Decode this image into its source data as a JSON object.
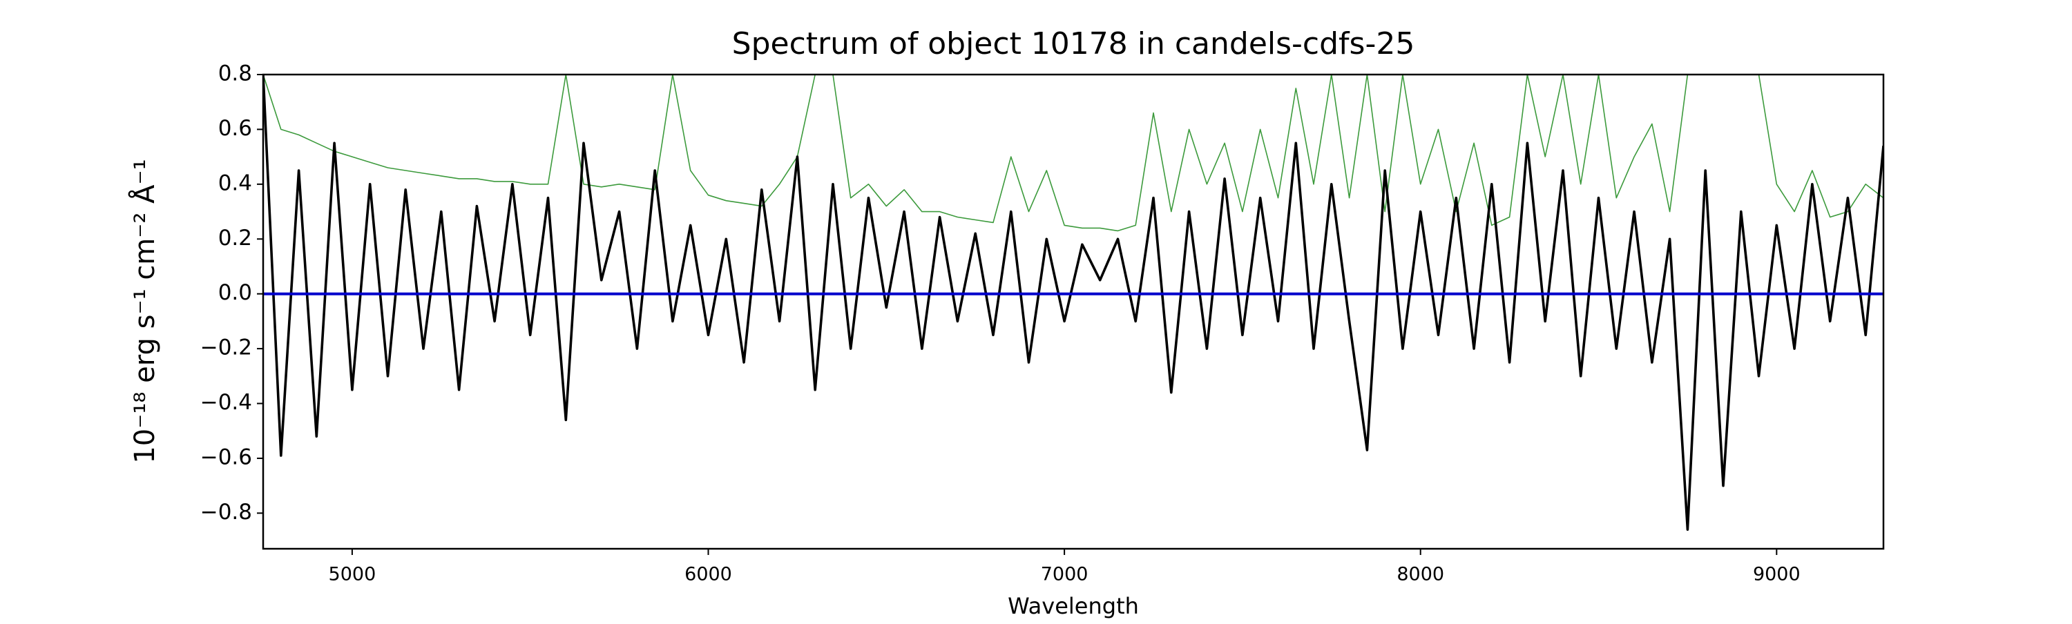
{
  "chart_data": {
    "type": "line",
    "title": "Spectrum of object 10178 in candels-cdfs-25",
    "x_label": "Wavelength",
    "y_label": "10⁻¹⁸ erg s⁻¹ cm⁻² Å⁻¹",
    "xlim": [
      4750,
      9300
    ],
    "ylim": [
      -0.93,
      0.8
    ],
    "xticks": [
      5000,
      6000,
      7000,
      8000,
      9000
    ],
    "yticks": [
      {
        "value": -0.8,
        "label": "−0.8"
      },
      {
        "value": -0.6,
        "label": "−0.6"
      },
      {
        "value": -0.4,
        "label": "−0.4"
      },
      {
        "value": -0.2,
        "label": "−0.2"
      },
      {
        "value": 0,
        "label": "0.0"
      },
      0.2,
      0.4,
      0.6,
      0.8
    ],
    "grid": false,
    "x": [
      4750,
      4800,
      4850,
      4900,
      4950,
      5000,
      5050,
      5100,
      5150,
      5200,
      5250,
      5300,
      5350,
      5400,
      5450,
      5500,
      5550,
      5600,
      5650,
      5700,
      5750,
      5800,
      5850,
      5900,
      5950,
      6000,
      6050,
      6100,
      6150,
      6200,
      6250,
      6300,
      6350,
      6400,
      6450,
      6500,
      6550,
      6600,
      6650,
      6700,
      6750,
      6800,
      6850,
      6900,
      6950,
      7000,
      7050,
      7100,
      7150,
      7200,
      7250,
      7300,
      7350,
      7400,
      7450,
      7500,
      7550,
      7600,
      7650,
      7700,
      7750,
      7800,
      7850,
      7900,
      7950,
      8000,
      8050,
      8100,
      8150,
      8200,
      8250,
      8300,
      8350,
      8400,
      8450,
      8500,
      8550,
      8600,
      8650,
      8700,
      8750,
      8800,
      8850,
      8900,
      8950,
      9000,
      9050,
      9100,
      9150,
      9200,
      9250,
      9300
    ],
    "series": [
      {
        "color": "#3c9a3c",
        "width": 1.6,
        "values": [
          0.8,
          0.6,
          0.58,
          0.55,
          0.52,
          0.5,
          0.48,
          0.46,
          0.45,
          0.44,
          0.43,
          0.42,
          0.42,
          0.41,
          0.41,
          0.4,
          0.4,
          0.8,
          0.4,
          0.39,
          0.4,
          0.39,
          0.38,
          0.8,
          0.45,
          0.36,
          0.34,
          0.33,
          0.32,
          0.4,
          0.5,
          0.8,
          0.8,
          0.35,
          0.4,
          0.32,
          0.38,
          0.3,
          0.3,
          0.28,
          0.27,
          0.26,
          0.5,
          0.3,
          0.45,
          0.25,
          0.24,
          0.24,
          0.23,
          0.25,
          0.66,
          0.3,
          0.6,
          0.4,
          0.55,
          0.3,
          0.6,
          0.35,
          0.75,
          0.4,
          0.8,
          0.35,
          0.8,
          0.3,
          0.8,
          0.4,
          0.6,
          0.3,
          0.55,
          0.25,
          0.28,
          0.8,
          0.5,
          0.8,
          0.4,
          0.8,
          0.35,
          0.5,
          0.62,
          0.3,
          0.8,
          0.8,
          0.8,
          0.8,
          0.8,
          0.4,
          0.3,
          0.45,
          0.28,
          0.3,
          0.4,
          0.35
        ]
      },
      {
        "color": "#000000",
        "width": 3.6,
        "values": [
          0.8,
          -0.59,
          0.45,
          -0.52,
          0.55,
          -0.35,
          0.4,
          -0.3,
          0.38,
          -0.2,
          0.3,
          -0.35,
          0.32,
          -0.1,
          0.4,
          -0.15,
          0.35,
          -0.46,
          0.55,
          0.05,
          0.3,
          -0.2,
          0.45,
          -0.1,
          0.25,
          -0.15,
          0.2,
          -0.25,
          0.38,
          -0.1,
          0.5,
          -0.35,
          0.4,
          -0.2,
          0.35,
          -0.05,
          0.3,
          -0.2,
          0.28,
          -0.1,
          0.22,
          -0.15,
          0.3,
          -0.25,
          0.2,
          -0.1,
          0.18,
          0.05,
          0.2,
          -0.1,
          0.35,
          -0.36,
          0.3,
          -0.2,
          0.42,
          -0.15,
          0.35,
          -0.1,
          0.55,
          -0.2,
          0.4,
          -0.1,
          -0.57,
          0.45,
          -0.2,
          0.3,
          -0.15,
          0.35,
          -0.2,
          0.4,
          -0.25,
          0.55,
          -0.1,
          0.45,
          -0.3,
          0.35,
          -0.2,
          0.3,
          -0.25,
          0.2,
          -0.86,
          0.45,
          -0.7,
          0.3,
          -0.3,
          0.25,
          -0.2,
          0.4,
          -0.1,
          0.35,
          -0.15,
          0.54
        ]
      },
      {
        "color": "#0000cc",
        "width": 4,
        "x": [
          4750,
          9300
        ],
        "values": [
          0,
          0
        ]
      }
    ]
  }
}
